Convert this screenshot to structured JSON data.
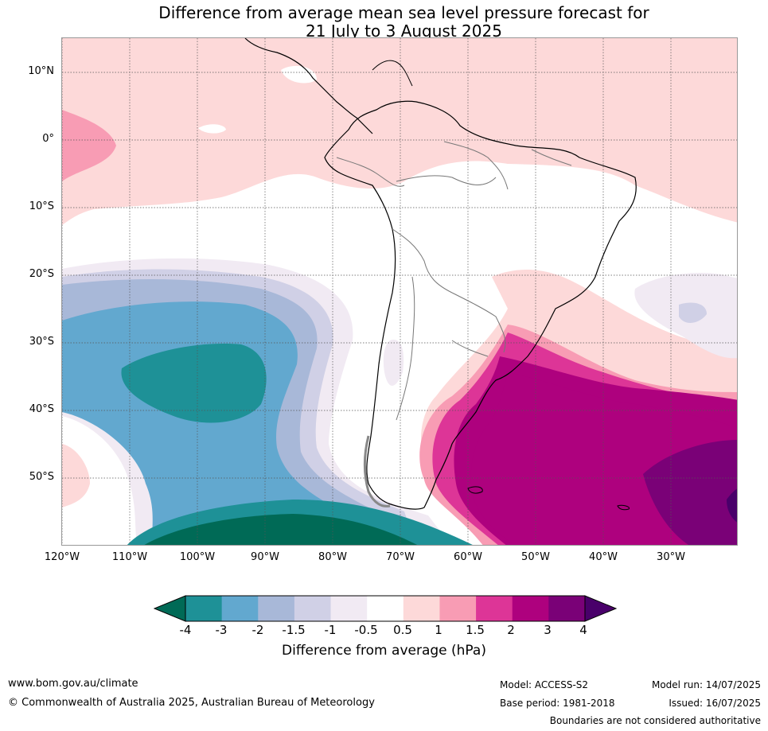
{
  "title": {
    "line1": "Difference from average mean sea level pressure forecast for",
    "line2": "21 July to 3 August 2025"
  },
  "map": {
    "lat_labels": [
      "10°N",
      "0°",
      "10°S",
      "20°S",
      "30°S",
      "40°S",
      "50°S"
    ],
    "lon_labels": [
      "120°W",
      "110°W",
      "100°W",
      "90°W",
      "80°W",
      "70°W",
      "60°W",
      "50°W",
      "40°W",
      "30°W"
    ]
  },
  "colorbar": {
    "ticks": [
      "-4",
      "-3",
      "-2",
      "-1.5",
      "-1",
      "-0.5",
      "0.5",
      "1",
      "1.5",
      "2",
      "3",
      "4"
    ],
    "colors": [
      "#006a56",
      "#1e9197",
      "#62a8cf",
      "#a8b8d8",
      "#d0d0e6",
      "#f1eaf3",
      "#ffffff",
      "#fdd9d9",
      "#f89cb4",
      "#dd3597",
      "#ae017e",
      "#7a0177",
      "#49006a"
    ],
    "label": "Difference from average (hPa)"
  },
  "footer": {
    "website": "www.bom.gov.au/climate",
    "copyright": "© Commonwealth of Australia 2025, Australian Bureau of Meteorology",
    "model": "Model: ACCESS-S2",
    "base_period": "Base period: 1981-2018",
    "model_run": "Model run: 14/07/2025",
    "issued": "Issued: 16/07/2025",
    "disclaimer": "Boundaries are not considered authoritative"
  }
}
